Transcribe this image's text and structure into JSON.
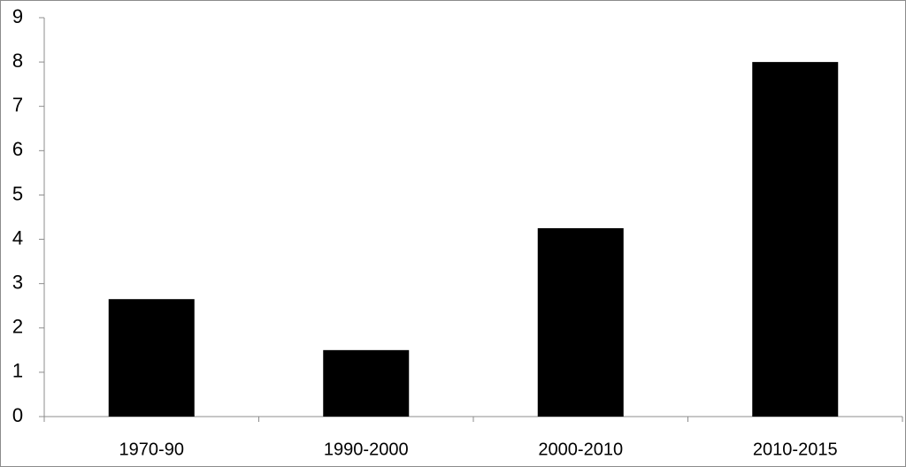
{
  "chart_data": {
    "type": "bar",
    "categories": [
      "1970-90",
      "1990-2000",
      "2000-2010",
      "2010-2015"
    ],
    "values": [
      2.65,
      1.5,
      4.25,
      8.0
    ],
    "color": "#000000",
    "ylim": [
      0,
      9
    ],
    "yticks": [
      0,
      1,
      2,
      3,
      4,
      5,
      6,
      7,
      8,
      9
    ],
    "grid": false
  }
}
